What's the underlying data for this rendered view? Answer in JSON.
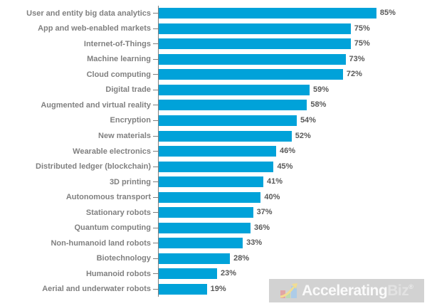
{
  "chart_data": {
    "type": "bar",
    "orientation": "horizontal",
    "title": "",
    "xlabel": "",
    "ylabel": "",
    "xlim": [
      0,
      100
    ],
    "grid": false,
    "legend": false,
    "value_suffix": "%",
    "categories": [
      "User and entity big data analytics",
      "App and web-enabled markets",
      "Internet-of-Things",
      "Machine learning",
      "Cloud computing",
      "Digital trade",
      "Augmented and virtual reality",
      "Encryption",
      "New materials",
      "Wearable electronics",
      "Distributed ledger (blockchain)",
      "3D printing",
      "Autonomous transport",
      "Stationary robots",
      "Quantum computing",
      "Non-humanoid land robots",
      "Biotechnology",
      "Humanoid robots",
      "Aerial and underwater robots"
    ],
    "values": [
      85,
      75,
      75,
      73,
      72,
      59,
      58,
      54,
      52,
      46,
      45,
      41,
      40,
      37,
      36,
      33,
      28,
      23,
      19
    ],
    "value_labels": [
      "85%",
      "75%",
      "75%",
      "73%",
      "72%",
      "59%",
      "58%",
      "54%",
      "52%",
      "46%",
      "45%",
      "41%",
      "40%",
      "37%",
      "36%",
      "33%",
      "28%",
      "23%",
      "19%"
    ],
    "bar_color": "#00a2d9",
    "label_color": "#808080",
    "value_color": "#595959",
    "axis_color": "#7f7f7f"
  },
  "watermark": {
    "text_primary": "Accelerating",
    "text_secondary": "Biz",
    "registered_mark": "®",
    "band_color": "#d2d2d2",
    "icon": "rising-bar-chart-arrow-icon"
  }
}
